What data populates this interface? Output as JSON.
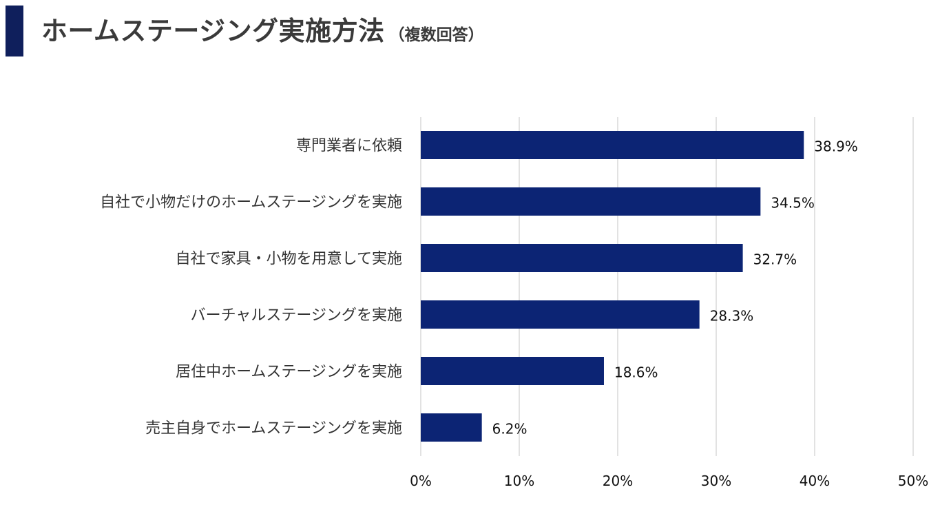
{
  "header": {
    "title": "ホームステージング実施方法",
    "subtitle": "（複数回答）"
  },
  "colors": {
    "accent": "#0f1f5c",
    "bar": "#0c2474",
    "grid": "#d9d9d9"
  },
  "chart_data": {
    "type": "bar",
    "orientation": "horizontal",
    "categories": [
      "専門業者に依頼",
      "自社で小物だけのホームステージングを実施",
      "自社で家具・小物を用意して実施",
      "バーチャルステージングを実施",
      "居住中ホームステージングを実施",
      "売主自身でホームステージングを実施"
    ],
    "values": [
      38.9,
      34.5,
      32.7,
      28.3,
      18.6,
      6.2
    ],
    "value_labels": [
      "38.9%",
      "34.5%",
      "32.7%",
      "28.3%",
      "18.6%",
      "6.2%"
    ],
    "xlim": [
      0,
      50
    ],
    "ticks": [
      0,
      10,
      20,
      30,
      40,
      50
    ],
    "tick_labels": [
      "0%",
      "10%",
      "20%",
      "30%",
      "40%",
      "50%"
    ],
    "grid": true
  }
}
